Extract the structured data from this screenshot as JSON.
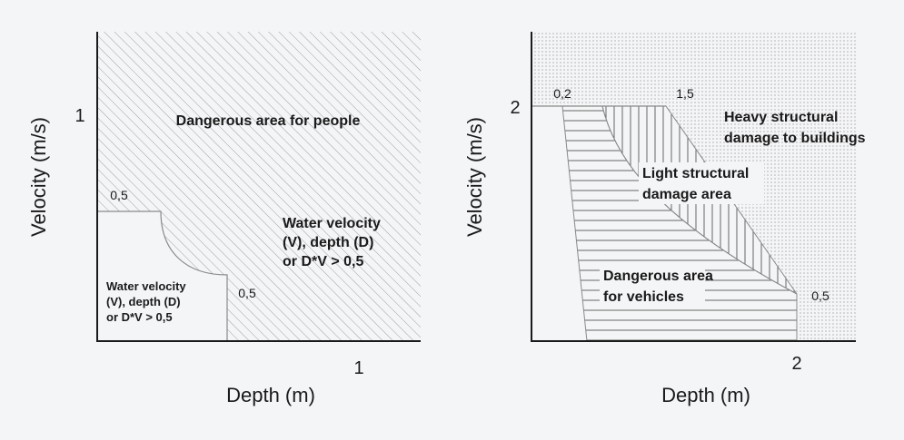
{
  "left_chart": {
    "y_axis_label": "Velocity (m/s)",
    "x_axis_label": "Depth (m)",
    "y_tick": "1",
    "x_tick": "1",
    "label_vel_threshold": "0,5",
    "label_depth_threshold": "0,5",
    "zone_danger": "Dangerous area for people",
    "zone_danger_cond": [
      "Water velocity",
      "(V), depth (D)",
      "or D*V > 0,5"
    ],
    "zone_safe_cond": [
      "Water velocity",
      "(V), depth (D)",
      "or D*V > 0,5"
    ]
  },
  "right_chart": {
    "y_axis_label": "Velocity (m/s)",
    "x_axis_label": "Depth (m)",
    "y_tick": "2",
    "x_tick": "2",
    "label_top_left": "0,2",
    "label_top_mid": "1,5",
    "label_right": "0,5",
    "zone_heavy": [
      "Heavy structural",
      "damage to buildings"
    ],
    "zone_light": [
      "Light structural",
      "damage area"
    ],
    "zone_vehicles": [
      "Dangerous area",
      "for vehicles"
    ]
  },
  "colors": {
    "background": "#f4f5f7",
    "axis": "#1a1a1a",
    "hatch": "#9a9a9a",
    "region_outline": "#8a8a8a"
  }
}
